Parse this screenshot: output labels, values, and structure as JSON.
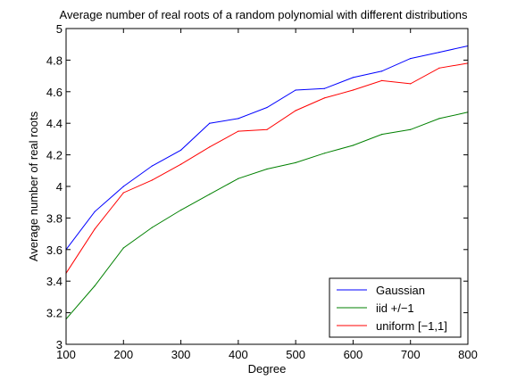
{
  "chart_data": {
    "type": "line",
    "title": "Average number of real roots of a random polynomial with different distributions",
    "xlabel": "Degree",
    "ylabel": "Average number of real roots",
    "xlim": [
      100,
      800
    ],
    "ylim": [
      3,
      5
    ],
    "xticks": [
      100,
      200,
      300,
      400,
      500,
      600,
      700,
      800
    ],
    "yticks": [
      3,
      3.2,
      3.4,
      3.6,
      3.8,
      4,
      4.2,
      4.4,
      4.6,
      4.8,
      5
    ],
    "ytick_labels": [
      "3",
      "3.2",
      "3.4",
      "3.6",
      "3.8",
      "4",
      "4.2",
      "4.4",
      "4.6",
      "4.8",
      "5"
    ],
    "grid": false,
    "legend_position": "bottom-right",
    "x": [
      100,
      150,
      200,
      250,
      300,
      350,
      400,
      450,
      500,
      550,
      600,
      650,
      700,
      750,
      800
    ],
    "series": [
      {
        "name": "Gaussian",
        "color": "#0000ff",
        "values": [
          3.6,
          3.84,
          4.0,
          4.13,
          4.23,
          4.4,
          4.43,
          4.5,
          4.61,
          4.62,
          4.69,
          4.73,
          4.81,
          4.85,
          4.89
        ]
      },
      {
        "name": "iid +/−1",
        "color": "#008000",
        "values": [
          3.16,
          3.37,
          3.61,
          3.74,
          3.85,
          3.95,
          4.05,
          4.11,
          4.15,
          4.21,
          4.26,
          4.33,
          4.36,
          4.43,
          4.47
        ]
      },
      {
        "name": "uniform [−1,1]",
        "color": "#ff0000",
        "values": [
          3.45,
          3.73,
          3.96,
          4.04,
          4.14,
          4.25,
          4.35,
          4.36,
          4.48,
          4.56,
          4.61,
          4.67,
          4.65,
          4.75,
          4.78
        ]
      }
    ]
  }
}
